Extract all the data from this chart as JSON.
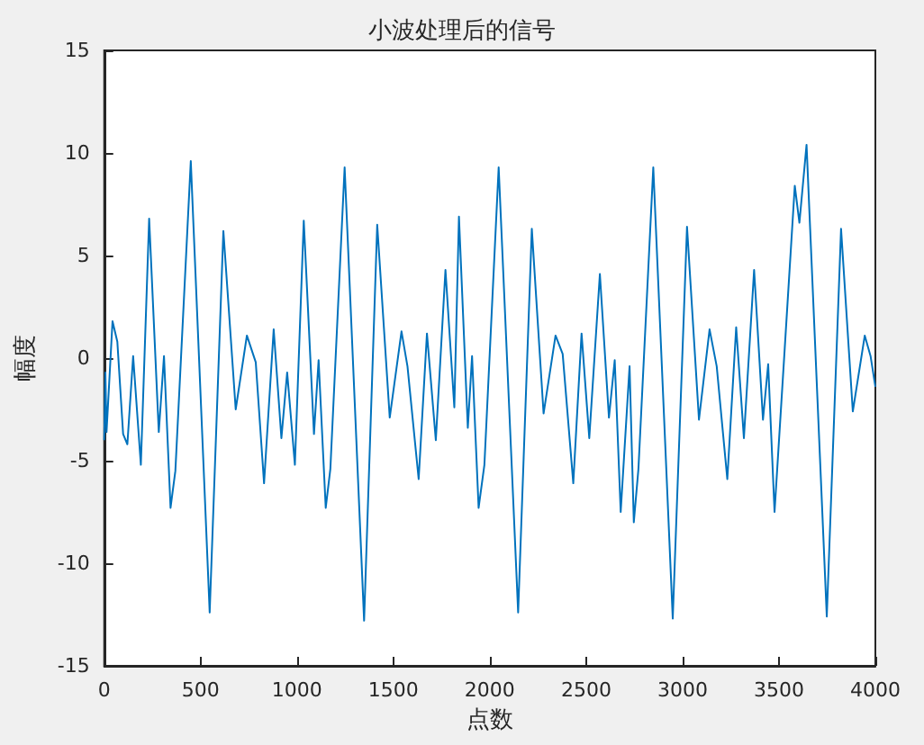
{
  "chart_data": {
    "type": "line",
    "title": "小波处理后的信号",
    "xlabel": "点数",
    "ylabel": "幅度",
    "xlim": [
      0,
      4000
    ],
    "xticks": [
      0,
      500,
      1000,
      1500,
      2000,
      2500,
      3000,
      3500,
      4000
    ],
    "ylim": [
      -15,
      15
    ],
    "yticks": [
      -15,
      -10,
      -5,
      0,
      5,
      10,
      15
    ],
    "grid": false,
    "marker": "none",
    "line_style": "solid",
    "series": [
      {
        "color": "#0072bd",
        "x": [
          0,
          6,
          12,
          43,
          68,
          98,
          120,
          150,
          190,
          233,
          283,
          310,
          344,
          369,
          449,
          547,
          618,
          682,
          740,
          786,
          829,
          879,
          919,
          949,
          989,
          1035,
          1088,
          1112,
          1149,
          1173,
          1247,
          1348,
          1416,
          1481,
          1542,
          1573,
          1631,
          1674,
          1720,
          1770,
          1816,
          1840,
          1886,
          1908,
          1942,
          1972,
          2046,
          2147,
          2218,
          2279,
          2341,
          2378,
          2433,
          2476,
          2516,
          2571,
          2618,
          2648,
          2679,
          2725,
          2747,
          2771,
          2848,
          2949,
          3023,
          3085,
          3140,
          3177,
          3232,
          3278,
          3318,
          3371,
          3417,
          3444,
          3477,
          3530,
          3582,
          3606,
          3643,
          3748,
          3822,
          3883,
          3945,
          3975,
          4000
        ],
        "values": [
          -4,
          -0.7,
          -3.6,
          1.8,
          0.8,
          -3.7,
          -4.2,
          0.1,
          -5.2,
          6.8,
          -3.6,
          0.1,
          -7.3,
          -5.5,
          9.6,
          -12.4,
          6.2,
          -2.5,
          1.1,
          -0.2,
          -6.1,
          1.4,
          -3.9,
          -0.7,
          -5.2,
          6.7,
          -3.7,
          -0.1,
          -7.3,
          -5.4,
          9.3,
          -12.8,
          6.5,
          -2.9,
          1.3,
          -0.4,
          -5.9,
          1.2,
          -4,
          4.3,
          -2.4,
          6.9,
          -3.4,
          0.1,
          -7.3,
          -5.2,
          9.3,
          -12.4,
          6.3,
          -2.7,
          1.1,
          0.2,
          -6.1,
          1.2,
          -3.9,
          4.1,
          -2.9,
          -0.1,
          -7.5,
          -0.4,
          -8,
          -5.4,
          9.3,
          -12.7,
          6.4,
          -3,
          1.4,
          -0.4,
          -5.9,
          1.5,
          -3.9,
          4.3,
          -3,
          -0.3,
          -7.5,
          0.5,
          8.4,
          6.6,
          10.4,
          -12.6,
          6.3,
          -2.6,
          1.1,
          0.1,
          -1.4
        ]
      }
    ]
  }
}
